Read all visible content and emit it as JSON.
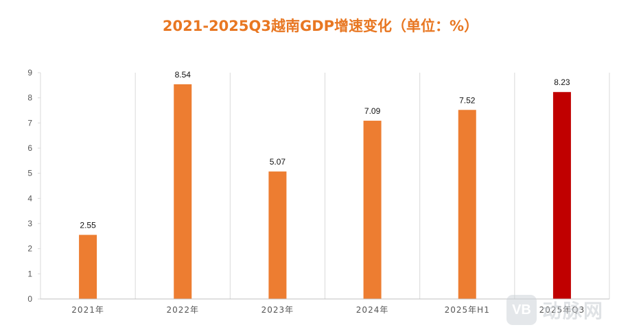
{
  "chart_data": {
    "type": "bar",
    "title": "2021-2025Q3越南GDP增速变化（单位：%）",
    "categories": [
      "2021年",
      "2022年",
      "2023年",
      "2024年",
      "2025年H1",
      "2025年Q3"
    ],
    "values": [
      2.55,
      8.54,
      5.07,
      7.09,
      7.52,
      8.23
    ],
    "data_labels": [
      "2.55",
      "8.54",
      "5.07",
      "7.09",
      "7.52",
      "8.23"
    ],
    "ylim": [
      0,
      9
    ],
    "yticks": [
      "0",
      "1",
      "2",
      "3",
      "4",
      "5",
      "6",
      "7",
      "8",
      "9"
    ],
    "grid": "vertical separators between categories",
    "legend": "none",
    "colors": {
      "bar": "#ED7D31",
      "highlight_bar": "#C00000",
      "title": "#E87722",
      "axis": "#d9d9d9"
    },
    "highlight_index": 5
  },
  "watermark": {
    "logo_text": "VB",
    "text": "动脉网"
  }
}
